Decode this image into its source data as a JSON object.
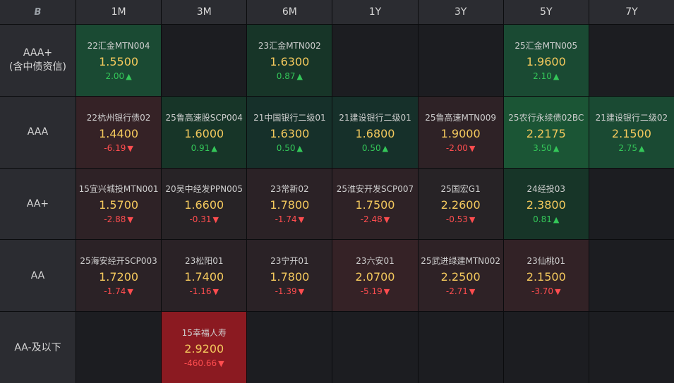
{
  "header": {
    "corner_glyph": "B",
    "columns": [
      "1M",
      "3M",
      "6M",
      "1Y",
      "3Y",
      "5Y",
      "7Y"
    ]
  },
  "colors": {
    "up_text": "#34c759",
    "down_text": "#ff4d4f",
    "rate_text": "#f4c95d",
    "up_bg_weak": "#173528",
    "up_bg_strong": "#1a4f33",
    "down_bg_weak": "#2e2226",
    "down_bg_strong": "#8b1a21"
  },
  "rows": [
    {
      "label": "AAA+\n(含中债资信)",
      "cells": [
        {
          "name": "22汇金MTN004",
          "rate": "1.5500",
          "change": "2.00",
          "dir": "up",
          "bg": "#1a4a33"
        },
        null,
        {
          "name": "23汇金MTN002",
          "rate": "1.6300",
          "change": "0.87",
          "dir": "up",
          "bg": "#173528"
        },
        null,
        null,
        {
          "name": "25汇金MTN005",
          "rate": "1.9600",
          "change": "2.10",
          "dir": "up",
          "bg": "#1a4a33"
        },
        null
      ]
    },
    {
      "label": "AAA",
      "cells": [
        {
          "name": "22杭州银行债02",
          "rate": "1.4400",
          "change": "-6.19",
          "dir": "down",
          "bg": "#352226"
        },
        {
          "name": "25鲁高速股SCP004",
          "rate": "1.6000",
          "change": "0.91",
          "dir": "up",
          "bg": "#173528"
        },
        {
          "name": "21中国银行二级01",
          "rate": "1.6300",
          "change": "0.50",
          "dir": "up",
          "bg": "#16302a"
        },
        {
          "name": "21建设银行二级01",
          "rate": "1.6800",
          "change": "0.50",
          "dir": "up",
          "bg": "#16302a"
        },
        {
          "name": "25鲁高速MTN009",
          "rate": "1.9000",
          "change": "-2.00",
          "dir": "down",
          "bg": "#2e2226"
        },
        {
          "name": "25农行永续债02BC",
          "rate": "2.2175",
          "change": "3.50",
          "dir": "up",
          "bg": "#1b5535"
        },
        {
          "name": "21建设银行二级02",
          "rate": "2.1500",
          "change": "2.75",
          "dir": "up",
          "bg": "#1a4a33"
        }
      ]
    },
    {
      "label": "AA+",
      "cells": [
        {
          "name": "15宜兴城投MTN001",
          "rate": "1.5700",
          "change": "-2.88",
          "dir": "down",
          "bg": "#2e2226"
        },
        {
          "name": "20吴中经发PPN005",
          "rate": "1.6600",
          "change": "-0.31",
          "dir": "down",
          "bg": "#272326"
        },
        {
          "name": "23常新02",
          "rate": "1.7800",
          "change": "-1.74",
          "dir": "down",
          "bg": "#2b2226"
        },
        {
          "name": "25淮安开发SCP007",
          "rate": "1.7500",
          "change": "-2.48",
          "dir": "down",
          "bg": "#2e2226"
        },
        {
          "name": "25国宏G1",
          "rate": "2.2600",
          "change": "-0.53",
          "dir": "down",
          "bg": "#272326"
        },
        {
          "name": "24经投03",
          "rate": "2.3800",
          "change": "0.81",
          "dir": "up",
          "bg": "#173528"
        },
        null
      ]
    },
    {
      "label": "AA",
      "cells": [
        {
          "name": "25海安经开SCP003",
          "rate": "1.7200",
          "change": "-1.74",
          "dir": "down",
          "bg": "#2b2226"
        },
        {
          "name": "23松阳01",
          "rate": "1.7400",
          "change": "-1.16",
          "dir": "down",
          "bg": "#2a2226"
        },
        {
          "name": "23宁开01",
          "rate": "1.7800",
          "change": "-1.39",
          "dir": "down",
          "bg": "#2a2226"
        },
        {
          "name": "23六安01",
          "rate": "2.0700",
          "change": "-5.19",
          "dir": "down",
          "bg": "#352226"
        },
        {
          "name": "25武进绿建MTN002",
          "rate": "2.2500",
          "change": "-2.71",
          "dir": "down",
          "bg": "#2e2226"
        },
        {
          "name": "23仙桃01",
          "rate": "2.1500",
          "change": "-3.70",
          "dir": "down",
          "bg": "#322226"
        },
        null
      ]
    },
    {
      "label": "AA-及以下",
      "cells": [
        null,
        {
          "name": "15幸福人寿",
          "rate": "2.9200",
          "change": "-460.66",
          "dir": "down",
          "bg": "#8b1a21"
        },
        null,
        null,
        null,
        null,
        null
      ]
    }
  ]
}
